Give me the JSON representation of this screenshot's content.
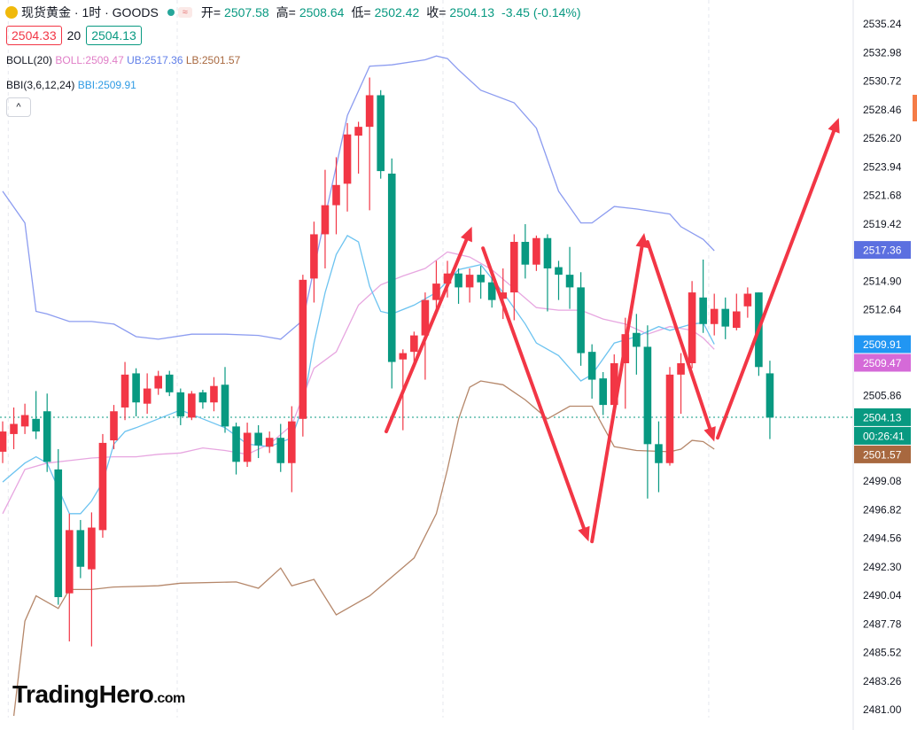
{
  "header": {
    "title": "现货黄金 · 1时 · GOODS",
    "open_label": "开=",
    "open": "2507.58",
    "high_label": "高=",
    "high": "2508.64",
    "low_label": "低=",
    "low": "2502.42",
    "close_label": "收=",
    "close": "2504.13",
    "change": "-3.45 (-0.14%)",
    "sell_price": "2504.33",
    "spread": "20",
    "buy_price": "2504.13",
    "collapse_symbol": "^"
  },
  "indicators": {
    "boll": {
      "name": "BOLL(20)",
      "basis": "BOLL:2509.47",
      "upper": "UB:2517.36",
      "lower": "LB:2501.57"
    },
    "bbi": {
      "name": "BBI(3,6,12,24)",
      "value": "BBI:2509.91"
    }
  },
  "watermark": {
    "brand": "TradingHero",
    "suffix": ".com"
  },
  "chart_data": {
    "type": "candlestick",
    "ylim": [
      2480.5,
      2536.0
    ],
    "y_ticks": [
      "2535.24",
      "2532.98",
      "2530.72",
      "2528.46",
      "2526.20",
      "2523.94",
      "2521.68",
      "2519.42",
      "2514.90",
      "2512.64",
      "2505.86",
      "2499.08",
      "2496.82",
      "2494.56",
      "2492.30",
      "2490.04",
      "2487.78",
      "2485.52",
      "2483.26",
      "2481.00"
    ],
    "price_tags": [
      {
        "name": "UB",
        "value": "2517.36",
        "color": "#5b6fe0"
      },
      {
        "name": "BBI",
        "value": "2509.91",
        "color": "#2196f3"
      },
      {
        "name": "BOLL",
        "value": "2509.47",
        "color": "#d56ad8"
      },
      {
        "name": "close",
        "value": "2504.13",
        "color": "#089981"
      },
      {
        "name": "countdown",
        "value": "00:26:41",
        "color": "#089981"
      },
      {
        "name": "LB",
        "value": "2501.57",
        "color": "#a8683f"
      }
    ],
    "candles": [
      [
        2501.4,
        2503.0,
        2500.5,
        2503.8
      ],
      [
        2502.8,
        2503.6,
        2501.6,
        2504.9
      ],
      [
        2503.4,
        2504.3,
        2502.8,
        2505.2
      ],
      [
        2504.0,
        2503.0,
        2502.4,
        2506.2
      ],
      [
        2504.6,
        2500.6,
        2499.8,
        2506.0
      ],
      [
        2500.0,
        2489.9,
        2489.3,
        2501.6
      ],
      [
        2490.2,
        2495.2,
        2486.4,
        2496.5
      ],
      [
        2495.2,
        2492.3,
        2491.4,
        2496.0
      ],
      [
        2492.1,
        2495.4,
        2486.0,
        2496.6
      ],
      [
        2495.2,
        2502.1,
        2494.6,
        2502.8
      ],
      [
        2502.3,
        2504.6,
        2501.6,
        2505.1
      ],
      [
        2504.9,
        2507.5,
        2503.9,
        2508.5
      ],
      [
        2507.6,
        2505.3,
        2504.2,
        2508.0
      ],
      [
        2505.2,
        2506.4,
        2504.4,
        2507.6
      ],
      [
        2506.4,
        2507.4,
        2505.9,
        2507.8
      ],
      [
        2507.5,
        2506.1,
        2505.8,
        2507.8
      ],
      [
        2506.1,
        2504.2,
        2503.5,
        2506.4
      ],
      [
        2504.1,
        2506.0,
        2503.9,
        2506.2
      ],
      [
        2506.1,
        2505.3,
        2504.8,
        2506.3
      ],
      [
        2505.3,
        2506.6,
        2504.6,
        2507.3
      ],
      [
        2506.7,
        2503.4,
        2502.9,
        2508.1
      ],
      [
        2503.4,
        2500.6,
        2499.6,
        2503.7
      ],
      [
        2500.6,
        2502.9,
        2500.2,
        2503.7
      ],
      [
        2502.9,
        2501.9,
        2500.9,
        2503.5
      ],
      [
        2501.8,
        2502.5,
        2501.3,
        2503.0
      ],
      [
        2502.5,
        2500.5,
        2499.8,
        2503.6
      ],
      [
        2500.5,
        2503.8,
        2498.2,
        2505.0
      ],
      [
        2504.0,
        2515.0,
        2502.6,
        2515.4
      ],
      [
        2515.1,
        2518.6,
        2513.2,
        2519.6
      ],
      [
        2518.6,
        2520.9,
        2515.9,
        2523.7
      ],
      [
        2520.9,
        2522.5,
        2518.6,
        2524.7
      ],
      [
        2522.6,
        2526.5,
        2520.4,
        2527.4
      ],
      [
        2526.4,
        2527.1,
        2523.4,
        2527.5
      ],
      [
        2527.1,
        2529.6,
        2520.5,
        2531.0
      ],
      [
        2529.6,
        2523.6,
        2523.0,
        2530.0
      ],
      [
        2523.4,
        2508.5,
        2506.4,
        2524.6
      ],
      [
        2508.7,
        2509.2,
        2503.1,
        2509.5
      ],
      [
        2509.3,
        2510.6,
        2508.1,
        2510.9
      ],
      [
        2510.6,
        2513.4,
        2507.1,
        2514.0
      ],
      [
        2513.4,
        2514.7,
        2512.5,
        2516.5
      ],
      [
        2514.7,
        2515.5,
        2513.6,
        2516.5
      ],
      [
        2515.5,
        2514.4,
        2513.1,
        2515.9
      ],
      [
        2514.4,
        2515.4,
        2513.2,
        2515.9
      ],
      [
        2515.4,
        2514.8,
        2513.5,
        2516.1
      ],
      [
        2514.8,
        2513.4,
        2512.8,
        2515.7
      ],
      [
        2513.5,
        2514.0,
        2511.9,
        2515.9
      ],
      [
        2514.0,
        2518.0,
        2511.8,
        2518.6
      ],
      [
        2518.0,
        2516.2,
        2515.1,
        2519.4
      ],
      [
        2516.2,
        2518.3,
        2515.7,
        2518.5
      ],
      [
        2518.3,
        2515.9,
        2512.5,
        2518.6
      ],
      [
        2516.0,
        2515.4,
        2513.4,
        2516.5
      ],
      [
        2515.4,
        2514.4,
        2512.7,
        2517.6
      ],
      [
        2514.4,
        2509.2,
        2508.2,
        2515.6
      ],
      [
        2509.3,
        2507.1,
        2505.6,
        2509.9
      ],
      [
        2507.2,
        2505.1,
        2504.3,
        2507.7
      ],
      [
        2505.1,
        2508.4,
        2504.6,
        2509.1
      ],
      [
        2508.4,
        2510.7,
        2504.8,
        2512.0
      ],
      [
        2510.8,
        2509.7,
        2507.5,
        2512.3
      ],
      [
        2509.7,
        2502.0,
        2497.7,
        2511.4
      ],
      [
        2502.0,
        2500.5,
        2498.2,
        2503.8
      ],
      [
        2500.5,
        2507.5,
        2500.3,
        2508.1
      ],
      [
        2507.5,
        2508.4,
        2504.4,
        2509.2
      ],
      [
        2508.4,
        2514.0,
        2508.0,
        2514.9
      ],
      [
        2513.6,
        2511.5,
        2510.8,
        2516.6
      ],
      [
        2511.5,
        2512.7,
        2510.6,
        2513.9
      ],
      [
        2512.7,
        2511.3,
        2510.3,
        2513.6
      ],
      [
        2511.2,
        2512.5,
        2511.0,
        2513.9
      ],
      [
        2512.9,
        2513.9,
        2512.0,
        2514.4
      ],
      [
        2514.0,
        2508.1,
        2507.4,
        2514.0
      ],
      [
        2507.6,
        2504.1,
        2502.4,
        2508.6
      ]
    ],
    "boll_upper_points": [
      [
        0,
        2522.0
      ],
      [
        2,
        2519.5
      ],
      [
        3,
        2512.5
      ],
      [
        4,
        2512.3
      ],
      [
        6,
        2511.7
      ],
      [
        8,
        2511.7
      ],
      [
        10,
        2511.5
      ],
      [
        12,
        2510.5
      ],
      [
        14,
        2510.3
      ],
      [
        17,
        2510.7
      ],
      [
        20,
        2510.7
      ],
      [
        23,
        2510.6
      ],
      [
        25,
        2510.3
      ],
      [
        27,
        2511.8
      ],
      [
        29,
        2520.0
      ],
      [
        31,
        2528.0
      ],
      [
        33,
        2531.9
      ],
      [
        35,
        2532.0
      ],
      [
        38,
        2532.4
      ],
      [
        39,
        2532.7
      ],
      [
        40,
        2532.5
      ],
      [
        41,
        2531.6
      ],
      [
        43,
        2530.0
      ],
      [
        46,
        2529.0
      ],
      [
        48,
        2527.0
      ],
      [
        50,
        2522.0
      ],
      [
        52,
        2519.5
      ],
      [
        53,
        2519.5
      ],
      [
        55,
        2520.8
      ],
      [
        57,
        2520.6
      ],
      [
        60,
        2520.2
      ],
      [
        61,
        2519.2
      ],
      [
        63,
        2518.2
      ],
      [
        64,
        2517.3
      ]
    ],
    "boll_lower_points": [
      [
        1,
        2480.5
      ],
      [
        2,
        2488.0
      ],
      [
        3,
        2490.0
      ],
      [
        5,
        2489.0
      ],
      [
        6,
        2490.5
      ],
      [
        8,
        2490.5
      ],
      [
        10,
        2490.7
      ],
      [
        14,
        2490.8
      ],
      [
        16,
        2491.0
      ],
      [
        21,
        2491.1
      ],
      [
        23,
        2490.6
      ],
      [
        25,
        2492.2
      ],
      [
        26,
        2490.8
      ],
      [
        28,
        2491.3
      ],
      [
        30,
        2488.5
      ],
      [
        33,
        2490.0
      ],
      [
        35,
        2491.5
      ],
      [
        37,
        2493.0
      ],
      [
        39,
        2496.5
      ],
      [
        40,
        2500.0
      ],
      [
        41,
        2504.0
      ],
      [
        42,
        2506.5
      ],
      [
        43,
        2507.0
      ],
      [
        45,
        2506.7
      ],
      [
        47,
        2505.5
      ],
      [
        49,
        2504.0
      ],
      [
        51,
        2505.0
      ],
      [
        53,
        2505.0
      ],
      [
        55,
        2501.8
      ],
      [
        57,
        2501.5
      ],
      [
        60,
        2501.4
      ],
      [
        61,
        2501.6
      ],
      [
        62,
        2502.3
      ],
      [
        63,
        2502.2
      ],
      [
        64,
        2501.6
      ]
    ],
    "boll_basis_points": [
      [
        0,
        2496.5
      ],
      [
        2,
        2500.0
      ],
      [
        4,
        2500.5
      ],
      [
        6,
        2500.7
      ],
      [
        8,
        2500.9
      ],
      [
        10,
        2501.0
      ],
      [
        12,
        2501.0
      ],
      [
        14,
        2501.2
      ],
      [
        16,
        2501.3
      ],
      [
        18,
        2501.7
      ],
      [
        20,
        2501.5
      ],
      [
        22,
        2501.2
      ],
      [
        24,
        2502.0
      ],
      [
        26,
        2503.5
      ],
      [
        28,
        2508.0
      ],
      [
        30,
        2509.3
      ],
      [
        32,
        2513.0
      ],
      [
        34,
        2514.6
      ],
      [
        36,
        2515.3
      ],
      [
        38,
        2515.9
      ],
      [
        40,
        2517.2
      ],
      [
        42,
        2516.8
      ],
      [
        44,
        2515.8
      ],
      [
        46,
        2514.3
      ],
      [
        48,
        2512.8
      ],
      [
        50,
        2512.6
      ],
      [
        52,
        2512.6
      ],
      [
        54,
        2511.9
      ],
      [
        56,
        2511.5
      ],
      [
        58,
        2510.7
      ],
      [
        60,
        2511.3
      ],
      [
        62,
        2511.0
      ],
      [
        63,
        2510.4
      ],
      [
        64,
        2509.5
      ]
    ],
    "bbi_points": [
      [
        0,
        2499.0
      ],
      [
        2,
        2500.5
      ],
      [
        3,
        2501.0
      ],
      [
        4,
        2500.5
      ],
      [
        6,
        2496.5
      ],
      [
        7,
        2496.5
      ],
      [
        8,
        2497.5
      ],
      [
        9,
        2499.0
      ],
      [
        10,
        2502.0
      ],
      [
        11,
        2503.0
      ],
      [
        12,
        2503.3
      ],
      [
        14,
        2504.0
      ],
      [
        16,
        2504.7
      ],
      [
        18,
        2504.0
      ],
      [
        20,
        2503.3
      ],
      [
        22,
        2502.0
      ],
      [
        24,
        2501.8
      ],
      [
        26,
        2502.5
      ],
      [
        27,
        2505.0
      ],
      [
        28,
        2510.0
      ],
      [
        29,
        2514.0
      ],
      [
        30,
        2517.0
      ],
      [
        31,
        2518.5
      ],
      [
        32,
        2518.0
      ],
      [
        33,
        2514.5
      ],
      [
        34,
        2512.5
      ],
      [
        35,
        2512.3
      ],
      [
        37,
        2513.0
      ],
      [
        39,
        2514.0
      ],
      [
        41,
        2515.8
      ],
      [
        43,
        2516.2
      ],
      [
        45,
        2514.0
      ],
      [
        47,
        2511.5
      ],
      [
        48,
        2510.0
      ],
      [
        50,
        2509.0
      ],
      [
        52,
        2507.0
      ],
      [
        53,
        2507.5
      ],
      [
        55,
        2510.0
      ],
      [
        57,
        2510.5
      ],
      [
        59,
        2511.3
      ],
      [
        60,
        2511.0
      ],
      [
        62,
        2511.5
      ],
      [
        63,
        2511.6
      ],
      [
        64,
        2509.9
      ]
    ],
    "annotation_arrows": [
      [
        [
          34.5,
          2503.0
        ],
        [
          42.2,
          2519.2
        ]
      ],
      [
        [
          43.2,
          2517.5
        ],
        [
          52.7,
          2494.3
        ]
      ],
      [
        [
          53.0,
          2494.3
        ],
        [
          57.7,
          2518.7
        ]
      ],
      [
        [
          58.0,
          2518.0
        ],
        [
          64.0,
          2502.2
        ]
      ],
      [
        [
          64.3,
          2502.5
        ],
        [
          75.2,
          2527.8
        ]
      ]
    ],
    "current_price": 2504.13
  }
}
